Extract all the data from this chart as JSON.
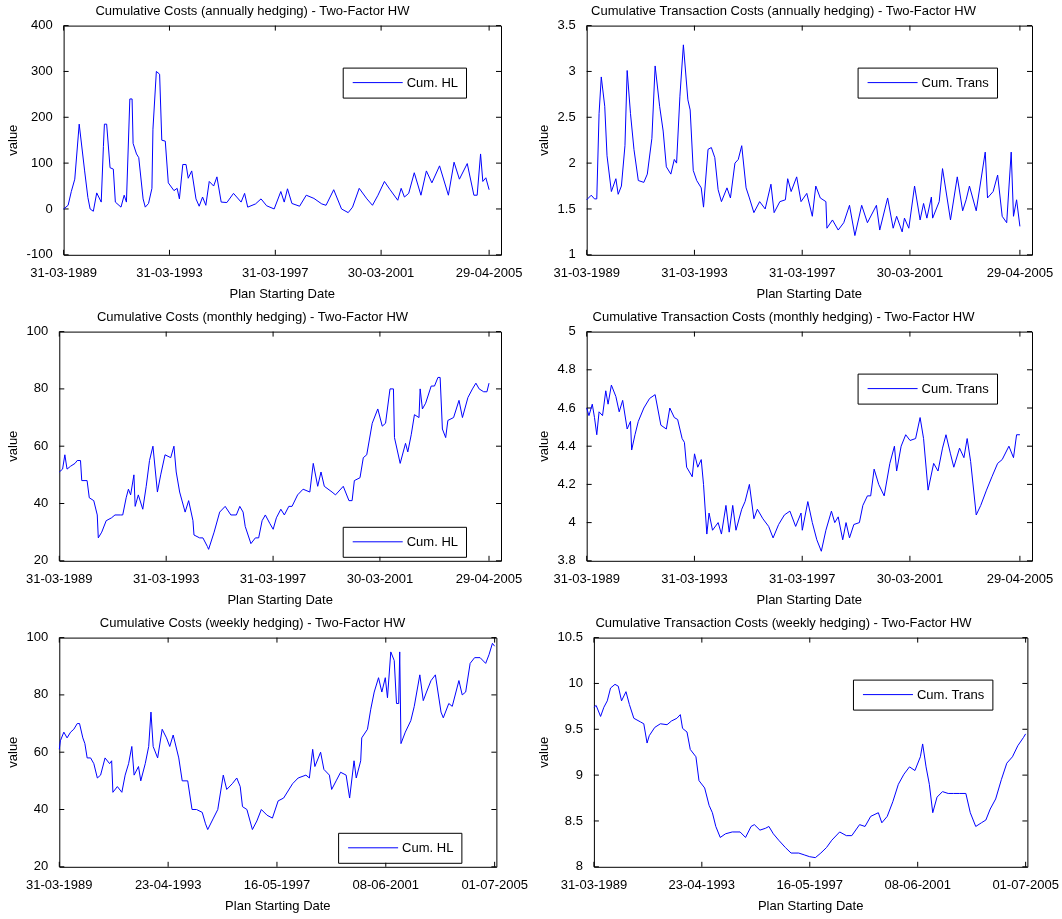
{
  "chart_data": [
    {
      "type": "line",
      "title": "Cumulative Costs (annually hedging) - Two-Factor HW",
      "xlabel": "Plan Starting Date",
      "ylabel": "value",
      "xlim": [
        "1989-03-31",
        "2005-10-10"
      ],
      "xticks": [
        {
          "value": "1989-03-31",
          "label": "31-03-1989"
        },
        {
          "value": "1993-03-31",
          "label": "31-03-1993"
        },
        {
          "value": "1997-03-31",
          "label": "31-03-1997"
        },
        {
          "value": "2001-03-30",
          "label": "30-03-2001"
        },
        {
          "value": "2005-04-29",
          "label": "29-04-2005"
        }
      ],
      "ylim": [
        -100,
        400
      ],
      "yticks": [
        -100,
        0,
        100,
        200,
        300,
        400
      ],
      "legend": "top right",
      "x": [
        "1989-03-31",
        "1989-06-01",
        "1989-07-15",
        "1989-09-01",
        "1989-11-01",
        "1990-01-15",
        "1990-03-01",
        "1990-04-01",
        "1990-05-15",
        "1990-07-01",
        "1990-09-01",
        "1990-10-01",
        "1990-10-15",
        "1990-11-15",
        "1991-01-01",
        "1991-02-15",
        "1991-03-15",
        "1991-06-01",
        "1991-07-15",
        "1991-08-15",
        "1991-10-01",
        "1991-11-01",
        "1991-11-15",
        "1992-01-01",
        "1992-02-01",
        "1992-04-01",
        "1992-05-01",
        "1992-06-15",
        "1992-08-01",
        "1992-08-15",
        "1992-10-01",
        "1992-11-15",
        "1992-12-15",
        "1993-02-01",
        "1993-03-15",
        "1993-06-01",
        "1993-07-15",
        "1993-08-15",
        "1993-10-01",
        "1993-11-15",
        "1993-12-15",
        "1994-02-01",
        "1994-04-01",
        "1994-05-15",
        "1994-07-01",
        "1994-08-15",
        "1994-10-01",
        "1994-12-01",
        "1995-01-15",
        "1995-03-15",
        "1995-06-01",
        "1995-09-01",
        "1995-12-15",
        "1996-02-01",
        "1996-03-15",
        "1996-07-01",
        "1996-09-15",
        "1996-12-01",
        "1997-03-15",
        "1997-06-15",
        "1997-08-01",
        "1997-09-15",
        "1997-11-15",
        "1998-03-01",
        "1998-06-01",
        "1998-09-15",
        "1999-01-01",
        "1999-03-01",
        "1999-06-15",
        "1999-10-01",
        "2000-01-01",
        "2000-03-01",
        "2000-06-01",
        "2000-09-15",
        "2000-12-01",
        "2001-02-15",
        "2001-05-15",
        "2001-08-01",
        "2001-11-15",
        "2002-01-01",
        "2002-02-15",
        "2002-04-15",
        "2002-07-01",
        "2002-10-01",
        "2002-12-15",
        "2003-03-01",
        "2003-06-15",
        "2003-10-15",
        "2004-01-01",
        "2004-03-15",
        "2004-07-01",
        "2004-10-01",
        "2004-11-15",
        "2005-01-01",
        "2005-02-01",
        "2005-03-15",
        "2005-04-29"
      ],
      "series": [
        {
          "name": "Cum. HL",
          "color": "#0000ff",
          "values": [
            0,
            8,
            38,
            65,
            185,
            83,
            25,
            0,
            -5,
            35,
            15,
            136,
            185,
            185,
            90,
            87,
            15,
            4,
            30,
            15,
            240,
            240,
            143,
            120,
            112,
            22,
            4,
            12,
            45,
            174,
            300,
            294,
            150,
            148,
            57,
            40,
            45,
            22,
            97,
            97,
            67,
            83,
            22,
            6,
            26,
            8,
            60,
            50,
            70,
            15,
            14,
            34,
            15,
            34,
            4,
            11,
            22,
            7,
            0,
            38,
            15,
            44,
            12,
            6,
            30,
            23,
            11,
            8,
            42,
            0,
            -8,
            4,
            45,
            22,
            8,
            30,
            60,
            42,
            19,
            45,
            26,
            34,
            79,
            30,
            83,
            57,
            94,
            30,
            102,
            65,
            99,
            30,
            30,
            120,
            60,
            68,
            42
          ]
        }
      ]
    },
    {
      "type": "line",
      "title": "Cumulative Transaction Costs (annually hedging) - Two-Factor HW",
      "xlabel": "Plan Starting Date",
      "ylabel": "value",
      "xlim": [
        "1989-03-31",
        "2005-10-10"
      ],
      "xticks": [
        {
          "value": "1989-03-31",
          "label": "31-03-1989"
        },
        {
          "value": "1993-03-31",
          "label": "31-03-1993"
        },
        {
          "value": "1997-03-31",
          "label": "31-03-1997"
        },
        {
          "value": "2001-03-30",
          "label": "30-03-2001"
        },
        {
          "value": "2005-04-29",
          "label": "29-04-2005"
        }
      ],
      "ylim": [
        1,
        3.5
      ],
      "yticks": [
        1,
        1.5,
        2,
        2.5,
        3,
        3.5
      ],
      "legend": "top right",
      "x": [
        "1989-03-31",
        "1989-06-01",
        "1989-07-15",
        "1989-08-15",
        "1989-09-15",
        "1989-10-15",
        "1989-12-01",
        "1990-01-01",
        "1990-03-01",
        "1990-05-01",
        "1990-06-01",
        "1990-07-15",
        "1990-09-01",
        "1990-10-01",
        "1990-11-15",
        "1991-01-01",
        "1991-03-01",
        "1991-05-15",
        "1991-07-01",
        "1991-09-01",
        "1991-10-15",
        "1991-12-15",
        "1992-02-01",
        "1992-03-15",
        "1992-05-15",
        "1992-07-01",
        "1992-08-01",
        "1992-09-15",
        "1992-11-01",
        "1993-01-01",
        "1993-02-01",
        "1993-03-15",
        "1993-05-01",
        "1993-07-01",
        "1993-08-01",
        "1993-10-01",
        "1993-11-15",
        "1994-01-01",
        "1994-02-15",
        "1994-04-01",
        "1994-06-15",
        "1994-08-01",
        "1994-10-01",
        "1994-11-15",
        "1995-01-01",
        "1995-03-01",
        "1995-04-15",
        "1995-06-15",
        "1995-09-01",
        "1995-11-15",
        "1996-02-01",
        "1996-03-15",
        "1996-06-01",
        "1996-08-15",
        "1996-09-15",
        "1996-11-01",
        "1997-01-15",
        "1997-03-15",
        "1997-06-01",
        "1997-08-15",
        "1997-10-01",
        "1997-12-01",
        "1998-02-15",
        "1998-03-01",
        "1998-05-15",
        "1998-08-01",
        "1998-10-15",
        "1999-01-01",
        "1999-03-15",
        "1999-06-15",
        "1999-09-01",
        "2000-01-01",
        "2000-02-15",
        "2000-06-01",
        "2000-08-15",
        "2000-10-01",
        "2000-12-15",
        "2001-01-15",
        "2001-03-15",
        "2001-06-01",
        "2001-08-15",
        "2001-10-01",
        "2001-11-15",
        "2002-01-15",
        "2002-02-01",
        "2002-05-01",
        "2002-06-15",
        "2002-10-01",
        "2003-01-01",
        "2003-03-15",
        "2003-05-01",
        "2003-06-15",
        "2003-09-15",
        "2004-01-15",
        "2004-02-15",
        "2004-05-01",
        "2004-07-01",
        "2004-09-01",
        "2004-11-01",
        "2005-01-01",
        "2005-02-01",
        "2005-03-15",
        "2005-04-29"
      ],
      "series": [
        {
          "name": "Cum. Trans",
          "color": "#0000ff",
          "values": [
            1.6,
            1.65,
            1.61,
            1.61,
            2.54,
            2.94,
            2.62,
            2.08,
            1.69,
            1.83,
            1.66,
            1.75,
            2.19,
            3.01,
            2.54,
            2.15,
            1.81,
            1.79,
            1.88,
            2.27,
            3.06,
            2.62,
            2.35,
            1.96,
            1.88,
            2.04,
            2.0,
            2.73,
            3.29,
            2.69,
            2.58,
            1.92,
            1.81,
            1.73,
            1.52,
            2.15,
            2.17,
            2.06,
            1.71,
            1.58,
            1.73,
            1.62,
            2.0,
            2.04,
            2.19,
            1.73,
            1.62,
            1.46,
            1.58,
            1.5,
            1.77,
            1.46,
            1.58,
            1.6,
            1.83,
            1.69,
            1.85,
            1.58,
            1.67,
            1.42,
            1.75,
            1.62,
            1.58,
            1.29,
            1.38,
            1.27,
            1.35,
            1.54,
            1.21,
            1.54,
            1.35,
            1.54,
            1.27,
            1.62,
            1.29,
            1.42,
            1.25,
            1.4,
            1.29,
            1.75,
            1.38,
            1.56,
            1.4,
            1.63,
            1.4,
            1.58,
            1.94,
            1.38,
            1.85,
            1.48,
            1.6,
            1.75,
            1.48,
            2.12,
            1.62,
            1.69,
            1.87,
            1.42,
            1.35,
            2.12,
            1.42,
            1.6,
            1.31
          ]
        }
      ]
    },
    {
      "type": "line",
      "title": "Cumulative Costs (monthly hedging) - Two-Factor HW",
      "xlabel": "Plan Starting Date",
      "ylabel": "value",
      "xlim": [
        "1989-03-31",
        "2005-10-10"
      ],
      "xticks": [
        {
          "value": "1989-03-31",
          "label": "31-03-1989"
        },
        {
          "value": "1993-03-31",
          "label": "31-03-1993"
        },
        {
          "value": "1997-03-31",
          "label": "31-03-1997"
        },
        {
          "value": "2001-03-30",
          "label": "30-03-2001"
        },
        {
          "value": "2005-04-29",
          "label": "29-04-2005"
        }
      ],
      "ylim": [
        20,
        100
      ],
      "yticks": [
        20,
        40,
        60,
        80,
        100
      ],
      "legend": "bottom right",
      "x": [
        "1989-03-31",
        "1989-05-15",
        "1989-06-15",
        "1989-07-15",
        "1989-09-01",
        "1989-11-01",
        "1989-12-01",
        "1990-01-15",
        "1990-02-01",
        "1990-04-15",
        "1990-05-15",
        "1990-07-15",
        "1990-09-01",
        "1990-09-15",
        "1990-11-01",
        "1991-01-01",
        "1991-03-15",
        "1991-05-01",
        "1991-07-15",
        "1991-08-15",
        "1991-10-01",
        "1991-11-01",
        "1991-12-01",
        "1992-01-15",
        "1992-02-01",
        "1992-03-15",
        "1992-05-15",
        "1992-07-01",
        "1992-08-15",
        "1992-10-01",
        "1992-12-01",
        "1993-01-15",
        "1993-03-15",
        "1993-06-01",
        "1993-07-15",
        "1993-08-15",
        "1993-10-01",
        "1993-12-15",
        "1994-02-01",
        "1994-04-01",
        "1994-04-15",
        "1994-07-01",
        "1994-08-15",
        "1994-10-15",
        "1994-11-01",
        "1995-01-15",
        "1995-04-01",
        "1995-06-15",
        "1995-09-01",
        "1995-11-15",
        "1996-01-01",
        "1996-02-15",
        "1996-03-15",
        "1996-06-01",
        "1996-08-01",
        "1996-09-15",
        "1996-11-01",
        "1996-12-15",
        "1997-02-15",
        "1997-04-01",
        "1997-05-15",
        "1997-07-15",
        "1997-09-01",
        "1997-11-01",
        "1997-12-15",
        "1998-03-01",
        "1998-05-15",
        "1998-08-15",
        "1998-10-01",
        "1998-12-01",
        "1999-01-15",
        "1999-03-01",
        "1999-06-15",
        "1999-08-01",
        "1999-11-15",
        "2000-02-01",
        "2000-03-15",
        "2000-04-15",
        "2000-07-01",
        "2000-08-15",
        "2000-10-01",
        "2000-12-15",
        "2001-03-01",
        "2001-05-01",
        "2001-06-15",
        "2001-08-15",
        "2001-10-01",
        "2001-10-15",
        "2002-01-01",
        "2002-03-15",
        "2002-04-15",
        "2002-06-01",
        "2002-07-15",
        "2002-09-15",
        "2002-10-01",
        "2002-11-01",
        "2002-12-15",
        "2003-03-01",
        "2003-04-15",
        "2003-06-01",
        "2003-07-01",
        "2003-08-01",
        "2003-09-15",
        "2003-10-15",
        "2004-01-01",
        "2004-03-15",
        "2004-05-01",
        "2004-07-15",
        "2004-09-15",
        "2004-11-01",
        "2004-12-15",
        "2005-02-15",
        "2005-04-01",
        "2005-04-29"
      ],
      "series": [
        {
          "name": "Cum. HL",
          "color": "#0000ff",
          "values": [
            51,
            52,
            57,
            52,
            53,
            54,
            55,
            55,
            48,
            48,
            42,
            41,
            36,
            28,
            30,
            34,
            35,
            36,
            36,
            36,
            42,
            45,
            43,
            50,
            39,
            43,
            38,
            46,
            55,
            60,
            44,
            50,
            57,
            56,
            60,
            51,
            44,
            37,
            41,
            34,
            29,
            28,
            28,
            25,
            24,
            30,
            37,
            39,
            36,
            36,
            39,
            37,
            32,
            26,
            28,
            28,
            34,
            36,
            33,
            31,
            35,
            38,
            36,
            39,
            39,
            43,
            45,
            44,
            54,
            46,
            51,
            46,
            44,
            43,
            46,
            41,
            41,
            48,
            49,
            56,
            57,
            68,
            73,
            67,
            68,
            80,
            80,
            63,
            54,
            61,
            58,
            64,
            71,
            70,
            80,
            73,
            75,
            81,
            81,
            84,
            84,
            66,
            63,
            69,
            70,
            76,
            70,
            77,
            80,
            82,
            80,
            79,
            79,
            82
          ]
        }
      ]
    },
    {
      "type": "line",
      "title": "Cumulative Transaction Costs (monthly hedging) - Two-Factor HW",
      "xlabel": "Plan Starting Date",
      "ylabel": "value",
      "xlim": [
        "1989-03-31",
        "2005-10-10"
      ],
      "xticks": [
        {
          "value": "1989-03-31",
          "label": "31-03-1989"
        },
        {
          "value": "1993-03-31",
          "label": "31-03-1993"
        },
        {
          "value": "1997-03-31",
          "label": "31-03-1997"
        },
        {
          "value": "2001-03-30",
          "label": "30-03-2001"
        },
        {
          "value": "2005-04-29",
          "label": "29-04-2005"
        }
      ],
      "ylim": [
        3.8,
        5
      ],
      "yticks": [
        3.8,
        4,
        4.2,
        4.4,
        4.6,
        4.8,
        5
      ],
      "legend": "top right",
      "x": [
        "1989-03-31",
        "1989-05-01",
        "1989-06-15",
        "1989-07-15",
        "1989-08-15",
        "1989-09-15",
        "1989-11-01",
        "1989-12-15",
        "1990-01-15",
        "1990-03-01",
        "1990-05-01",
        "1990-06-15",
        "1990-08-01",
        "1990-10-01",
        "1990-11-15",
        "1990-12-01",
        "1991-01-15",
        "1991-03-01",
        "1991-05-15",
        "1991-08-01",
        "1991-10-15",
        "1992-01-01",
        "1992-03-15",
        "1992-05-01",
        "1992-07-01",
        "1992-08-15",
        "1992-10-15",
        "1992-11-15",
        "1992-12-15",
        "1993-01-15",
        "1993-03-01",
        "1993-04-01",
        "1993-05-15",
        "1993-07-01",
        "1993-08-01",
        "1993-09-15",
        "1993-10-15",
        "1993-12-01",
        "1994-02-15",
        "1994-04-01",
        "1994-06-01",
        "1994-07-15",
        "1994-09-01",
        "1994-10-15",
        "1995-01-01",
        "1995-02-15",
        "1995-04-15",
        "1995-06-15",
        "1995-08-01",
        "1995-10-15",
        "1996-01-01",
        "1996-03-01",
        "1996-05-15",
        "1996-08-01",
        "1996-10-15",
        "1997-01-01",
        "1997-03-15",
        "1997-04-01",
        "1997-06-15",
        "1997-08-15",
        "1997-10-15",
        "1997-12-15",
        "1998-02-15",
        "1998-05-01",
        "1998-06-15",
        "1998-08-01",
        "1998-10-01",
        "1998-11-15",
        "1999-01-01",
        "1999-03-01",
        "1999-05-15",
        "1999-07-01",
        "1999-09-01",
        "1999-10-15",
        "1999-12-01",
        "2000-02-01",
        "2000-04-15",
        "2000-07-01",
        "2000-09-01",
        "2000-10-01",
        "2000-12-01",
        "2001-02-01",
        "2001-04-01",
        "2001-06-15",
        "2001-08-15",
        "2001-10-01",
        "2001-12-01",
        "2002-02-15",
        "2002-04-15",
        "2002-06-15",
        "2002-08-01",
        "2002-10-01",
        "2002-11-15",
        "2003-02-01",
        "2003-04-01",
        "2003-05-15",
        "2003-07-01",
        "2003-09-15",
        "2003-11-15",
        "2004-02-01",
        "2004-04-15",
        "2004-07-01",
        "2004-09-01",
        "2004-12-01",
        "2005-02-01",
        "2005-03-15",
        "2005-04-29"
      ],
      "series": [
        {
          "name": "Cum. Trans",
          "color": "#0000ff",
          "values": [
            4.6,
            4.56,
            4.62,
            4.55,
            4.46,
            4.58,
            4.56,
            4.69,
            4.62,
            4.72,
            4.66,
            4.58,
            4.64,
            4.49,
            4.53,
            4.38,
            4.46,
            4.53,
            4.6,
            4.65,
            4.67,
            4.51,
            4.49,
            4.6,
            4.55,
            4.54,
            4.44,
            4.42,
            4.29,
            4.27,
            4.24,
            4.36,
            4.29,
            4.33,
            4.2,
            3.94,
            4.05,
            3.96,
            4.0,
            3.94,
            4.09,
            3.95,
            4.09,
            3.96,
            4.07,
            4.11,
            4.2,
            4.02,
            4.07,
            4.02,
            3.98,
            3.92,
            3.99,
            4.04,
            4.06,
            3.98,
            4.05,
            3.96,
            4.11,
            4.0,
            3.91,
            3.85,
            3.96,
            4.06,
            4.0,
            4.03,
            3.91,
            4.0,
            3.92,
            3.99,
            4.0,
            4.09,
            4.14,
            4.14,
            4.28,
            4.2,
            4.14,
            4.31,
            4.4,
            4.27,
            4.4,
            4.46,
            4.43,
            4.44,
            4.55,
            4.44,
            4.17,
            4.31,
            4.27,
            4.39,
            4.46,
            4.36,
            4.29,
            4.39,
            4.34,
            4.44,
            4.32,
            4.04,
            4.09,
            4.17,
            4.24,
            4.31,
            4.33,
            4.4,
            4.34,
            4.46,
            4.46
          ]
        }
      ]
    },
    {
      "type": "line",
      "title": "Cumulative Costs (weekly hedging) - Two-Factor HW",
      "xlabel": "Plan Starting Date",
      "ylabel": "value",
      "xlim": [
        "1989-03-31",
        "2005-07-25"
      ],
      "xticks": [
        {
          "value": "1989-03-31",
          "label": "31-03-1989"
        },
        {
          "value": "1993-04-23",
          "label": "23-04-1993"
        },
        {
          "value": "1997-05-16",
          "label": "16-05-1997"
        },
        {
          "value": "2001-06-08",
          "label": "08-06-2001"
        },
        {
          "value": "2005-07-01",
          "label": "01-07-2005"
        }
      ],
      "ylim": [
        20,
        100
      ],
      "yticks": [
        20,
        40,
        60,
        80,
        100
      ],
      "legend": "bottom right",
      "x": [
        "1989-03-31",
        "1989-04-15",
        "1989-06-01",
        "1989-07-15",
        "1989-09-01",
        "1989-10-15",
        "1989-12-01",
        "1990-01-01",
        "1990-02-15",
        "1990-03-15",
        "1990-04-15",
        "1990-06-01",
        "1990-07-15",
        "1990-09-01",
        "1990-10-15",
        "1990-12-15",
        "1991-02-15",
        "1991-03-15",
        "1991-04-01",
        "1991-06-01",
        "1991-08-01",
        "1991-09-15",
        "1991-11-01",
        "1991-12-15",
        "1992-01-15",
        "1992-03-15",
        "1992-04-15",
        "1992-06-15",
        "1992-08-01",
        "1992-09-01",
        "1992-10-01",
        "1992-12-01",
        "1993-02-01",
        "1993-04-01",
        "1993-05-15",
        "1993-07-01",
        "1993-09-15",
        "1993-11-01",
        "1994-01-15",
        "1994-03-15",
        "1994-05-15",
        "1994-08-01",
        "1994-09-15",
        "1994-10-15",
        "1995-01-01",
        "1995-03-01",
        "1995-05-15",
        "1995-07-01",
        "1995-09-15",
        "1995-11-15",
        "1996-01-01",
        "1996-02-01",
        "1996-04-01",
        "1996-06-15",
        "1996-08-15",
        "1996-10-15",
        "1997-01-01",
        "1997-03-15",
        "1997-06-01",
        "1997-08-15",
        "1997-12-15",
        "1998-03-01",
        "1998-06-15",
        "1998-08-01",
        "1998-09-15",
        "1998-10-15",
        "1999-01-01",
        "1999-02-15",
        "1999-05-01",
        "1999-06-01",
        "1999-08-01",
        "1999-10-01",
        "1999-12-15",
        "2000-02-01",
        "2000-04-01",
        "2000-05-01",
        "2000-07-01",
        "2000-07-15",
        "2000-10-01",
        "2000-11-15",
        "2001-01-01",
        "2001-03-01",
        "2001-04-15",
        "2001-06-01",
        "2001-07-01",
        "2001-08-15",
        "2001-10-01",
        "2001-11-01",
        "2001-12-01",
        "2001-12-15",
        "2002-01-01",
        "2002-03-01",
        "2002-05-15",
        "2002-07-01",
        "2002-09-15",
        "2002-11-01",
        "2002-12-15",
        "2003-02-15",
        "2003-04-15",
        "2003-07-01",
        "2003-08-01",
        "2003-10-15",
        "2003-12-01",
        "2004-03-01",
        "2004-04-15",
        "2004-06-01",
        "2004-08-01",
        "2004-10-01",
        "2004-12-15",
        "2005-03-01",
        "2005-04-15",
        "2005-06-01",
        "2005-07-01"
      ],
      "series": [
        {
          "name": "Cum. HL",
          "color": "#0000ff",
          "values": [
            61,
            64,
            67,
            65,
            67,
            68,
            70,
            70,
            65,
            63,
            58,
            58,
            56,
            51,
            52,
            58,
            56,
            57,
            46,
            48,
            46,
            52,
            56,
            62,
            52,
            55,
            50,
            56,
            62,
            74,
            62,
            58,
            68,
            65,
            62,
            66,
            58,
            50,
            50,
            40,
            40,
            39,
            35,
            33,
            37,
            40,
            52,
            47,
            49,
            51,
            48,
            41,
            40,
            33,
            36,
            40,
            38,
            37,
            43,
            44,
            49,
            51,
            52,
            51,
            61,
            55,
            60,
            54,
            52,
            47,
            50,
            53,
            52,
            44,
            57,
            51,
            57,
            65,
            68,
            75,
            81,
            86,
            81,
            86,
            79,
            95,
            92,
            77,
            77,
            95,
            63,
            67,
            71,
            76,
            87,
            78,
            81,
            85,
            87,
            74,
            72,
            77,
            76,
            85,
            80,
            81,
            91,
            93,
            93,
            91,
            94,
            98,
            97
          ]
        }
      ]
    },
    {
      "type": "line",
      "title": "Cumulative Transaction Costs (weekly hedging) - Two-Factor HW",
      "xlabel": "Plan Starting Date",
      "ylabel": "value",
      "xlim": [
        "1989-03-31",
        "2005-07-25"
      ],
      "xticks": [
        {
          "value": "1989-03-31",
          "label": "31-03-1989"
        },
        {
          "value": "1993-04-23",
          "label": "23-04-1993"
        },
        {
          "value": "1997-05-16",
          "label": "16-05-1997"
        },
        {
          "value": "2001-06-08",
          "label": "08-06-2001"
        },
        {
          "value": "2005-07-01",
          "label": "01-07-2005"
        }
      ],
      "ylim": [
        8,
        10.5
      ],
      "yticks": [
        8,
        8.5,
        9,
        9.5,
        10,
        10.5
      ],
      "legend": "top right",
      "x": [
        "1989-03-31",
        "1989-05-01",
        "1989-07-01",
        "1989-08-15",
        "1989-10-01",
        "1989-11-15",
        "1990-01-15",
        "1990-03-01",
        "1990-04-15",
        "1990-06-15",
        "1990-08-01",
        "1990-10-01",
        "1991-01-01",
        "1991-02-15",
        "1991-04-01",
        "1991-05-01",
        "1991-07-15",
        "1991-10-01",
        "1992-01-01",
        "1992-03-01",
        "1992-05-15",
        "1992-07-01",
        "1992-08-01",
        "1992-10-01",
        "1992-11-15",
        "1993-02-01",
        "1993-03-15",
        "1993-06-01",
        "1993-08-01",
        "1993-09-15",
        "1993-11-01",
        "1994-01-01",
        "1994-03-15",
        "1994-06-15",
        "1994-10-01",
        "1994-12-15",
        "1995-03-01",
        "1995-04-15",
        "1995-07-01",
        "1995-09-15",
        "1995-11-01",
        "1996-01-01",
        "1996-03-15",
        "1996-06-15",
        "1996-09-01",
        "1996-12-15",
        "1997-03-01",
        "1997-05-15",
        "1997-08-01",
        "1997-10-15",
        "1998-01-01",
        "1998-03-15",
        "1998-07-01",
        "1998-10-01",
        "1998-12-15",
        "1999-04-01",
        "1999-06-15",
        "1999-09-01",
        "1999-12-15",
        "2000-02-01",
        "2000-04-15",
        "2000-07-01",
        "2000-09-15",
        "2000-12-01",
        "2001-02-15",
        "2001-05-01",
        "2001-07-15",
        "2001-08-15",
        "2001-10-01",
        "2001-11-15",
        "2002-01-01",
        "2002-03-01",
        "2002-05-15",
        "2002-08-01",
        "2002-10-15",
        "2003-01-01",
        "2003-04-01",
        "2003-06-01",
        "2003-08-15",
        "2003-11-01",
        "2004-01-01",
        "2004-03-01",
        "2004-05-15",
        "2004-08-01",
        "2004-10-15",
        "2005-01-01",
        "2005-03-15",
        "2005-06-01",
        "2005-07-01"
      ],
      "series": [
        {
          "name": "Cum. Trans",
          "color": "#0000ff",
          "values": [
            9.74,
            9.76,
            9.64,
            9.74,
            9.81,
            9.95,
            9.99,
            9.97,
            9.81,
            9.91,
            9.77,
            9.62,
            9.58,
            9.56,
            9.35,
            9.43,
            9.52,
            9.56,
            9.55,
            9.59,
            9.62,
            9.66,
            9.51,
            9.47,
            9.28,
            9.2,
            8.94,
            8.86,
            8.67,
            8.59,
            8.44,
            8.32,
            8.36,
            8.38,
            8.38,
            8.32,
            8.44,
            8.46,
            8.4,
            8.42,
            8.44,
            8.36,
            8.29,
            8.21,
            8.15,
            8.15,
            8.13,
            8.11,
            8.1,
            8.15,
            8.21,
            8.29,
            8.38,
            8.34,
            8.34,
            8.46,
            8.44,
            8.55,
            8.59,
            8.48,
            8.55,
            8.71,
            8.9,
            9.01,
            9.09,
            9.05,
            9.2,
            9.34,
            9.09,
            8.9,
            8.59,
            8.76,
            8.82,
            8.8,
            8.8,
            8.8,
            8.8,
            8.59,
            8.44,
            8.48,
            8.51,
            8.63,
            8.74,
            8.95,
            9.13,
            9.2,
            9.32,
            9.41,
            9.45
          ]
        }
      ]
    }
  ]
}
